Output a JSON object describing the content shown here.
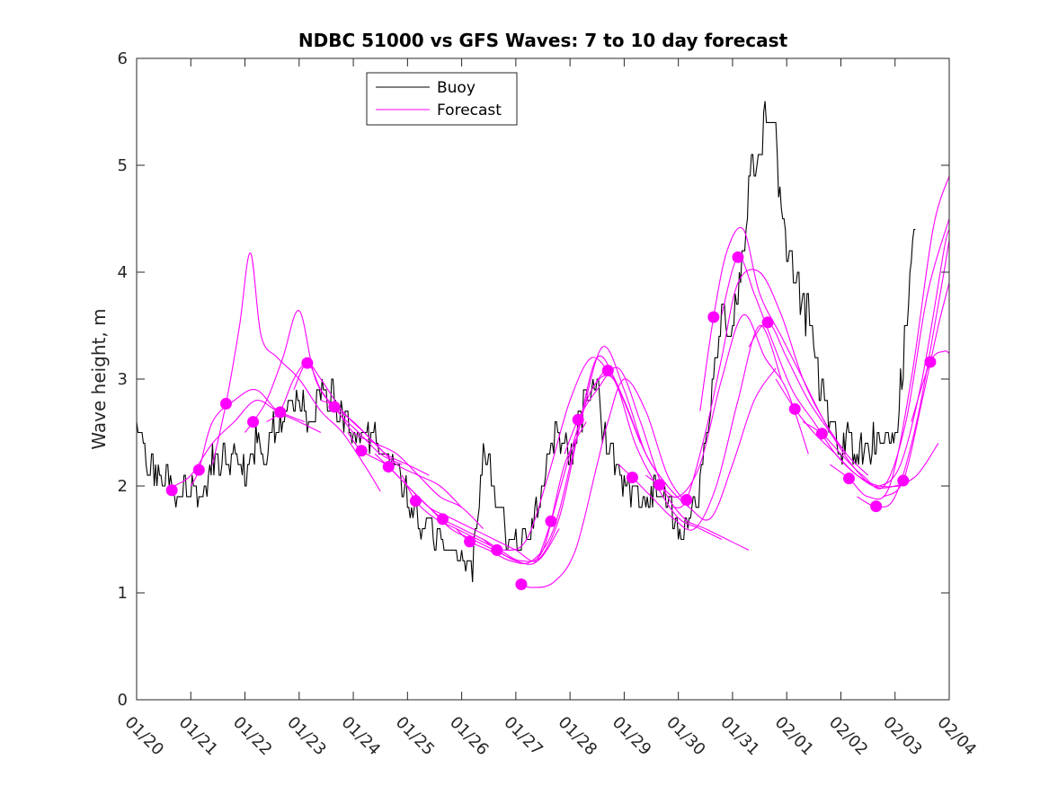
{
  "chart_data": {
    "type": "line",
    "title": "NDBC 51000 vs GFS Waves: 7 to 10 day forecast",
    "xlabel": "",
    "ylabel": "Wave height, m",
    "xlim": [
      0,
      15
    ],
    "ylim": [
      0,
      6
    ],
    "x_tick_labels": [
      "01/20",
      "01/21",
      "01/22",
      "01/23",
      "01/24",
      "01/25",
      "01/26",
      "01/27",
      "01/28",
      "01/29",
      "01/30",
      "01/31",
      "02/01",
      "02/02",
      "02/03",
      "02/04"
    ],
    "y_ticks": [
      0,
      1,
      2,
      3,
      4,
      5,
      6
    ],
    "grid": false,
    "legend": [
      "Buoy",
      "Forecast"
    ],
    "legend_position": "top-center",
    "colors": {
      "buoy": "#000000",
      "forecast": "#ff00ff",
      "axis": "#262626"
    },
    "buoy_series": {
      "name": "Buoy",
      "x": [
        0.0,
        0.2,
        0.4,
        0.6,
        0.8,
        1.0,
        1.2,
        1.4,
        1.6,
        1.8,
        2.0,
        2.2,
        2.4,
        2.6,
        2.8,
        3.0,
        3.2,
        3.4,
        3.6,
        3.8,
        4.0,
        4.2,
        4.4,
        4.6,
        4.8,
        5.0,
        5.2,
        5.4,
        5.6,
        5.8,
        6.0,
        6.2,
        6.4,
        6.6,
        6.8,
        7.0,
        7.2,
        7.4,
        7.6,
        7.8,
        8.0,
        8.2,
        8.4,
        8.6,
        8.8,
        9.0,
        9.2,
        9.4,
        9.6,
        9.8,
        10.0,
        10.2,
        10.4,
        10.6,
        10.8,
        11.0,
        11.2,
        11.4,
        11.6,
        11.8,
        12.0,
        12.2,
        12.4,
        12.6,
        12.8,
        13.0,
        13.2,
        13.4,
        13.6,
        13.8,
        14.0,
        14.2,
        14.4
      ],
      "y": [
        2.5,
        2.2,
        2.1,
        2.0,
        1.95,
        2.0,
        1.9,
        2.2,
        2.3,
        2.2,
        2.1,
        2.4,
        2.4,
        2.6,
        2.7,
        2.8,
        2.6,
        2.8,
        2.9,
        2.6,
        2.5,
        2.5,
        2.4,
        2.2,
        2.1,
        1.9,
        1.7,
        1.6,
        1.5,
        1.4,
        1.3,
        1.25,
        2.3,
        2.0,
        1.5,
        1.45,
        1.5,
        1.9,
        2.3,
        2.5,
        2.3,
        2.6,
        3.0,
        2.6,
        2.1,
        2.0,
        1.9,
        1.9,
        2.0,
        1.8,
        1.6,
        1.6,
        2.2,
        2.8,
        3.7,
        3.6,
        4.3,
        5.2,
        5.5,
        5.0,
        4.3,
        3.9,
        3.5,
        3.0,
        2.6,
        2.4,
        2.4,
        2.3,
        2.4,
        2.5,
        2.4,
        3.5,
        4.6
      ]
    },
    "forecast_series": [
      {
        "name": "Forecast",
        "x": [
          0.6,
          0.7,
          1.0,
          1.4,
          1.8,
          2.2,
          2.6,
          3.1
        ],
        "y": [
          1.95,
          2.0,
          2.1,
          2.4,
          2.6,
          2.8,
          2.7,
          2.6
        ]
      },
      {
        "name": "Forecast",
        "x": [
          1.0,
          1.15,
          1.4,
          1.8,
          2.2,
          2.6,
          3.0,
          3.4
        ],
        "y": [
          2.0,
          2.15,
          2.6,
          2.8,
          2.9,
          2.7,
          2.6,
          2.5
        ]
      },
      {
        "name": "Forecast",
        "x": [
          1.4,
          1.65,
          1.9,
          2.1,
          2.3,
          2.6,
          3.0,
          3.4,
          3.8,
          4.2,
          4.5
        ],
        "y": [
          2.2,
          2.77,
          3.5,
          4.18,
          3.4,
          3.2,
          3.0,
          2.7,
          2.5,
          2.2,
          1.95
        ]
      },
      {
        "name": "Forecast",
        "x": [
          2.0,
          2.15,
          2.4,
          2.7,
          3.0,
          3.3,
          3.7,
          4.1,
          4.5,
          4.9
        ],
        "y": [
          2.5,
          2.6,
          2.8,
          3.2,
          3.64,
          3.0,
          2.7,
          2.5,
          2.3,
          2.2
        ]
      },
      {
        "name": "Forecast",
        "x": [
          2.4,
          2.65,
          2.9,
          3.15,
          3.4,
          3.8,
          4.2,
          4.6,
          5.0,
          5.4
        ],
        "y": [
          2.6,
          2.7,
          3.0,
          3.15,
          3.0,
          2.7,
          2.5,
          2.3,
          2.2,
          2.1
        ]
      },
      {
        "name": "Forecast",
        "x": [
          2.9,
          3.15,
          3.4,
          3.65,
          4.0,
          4.4,
          4.8,
          5.2,
          5.6,
          6.0
        ],
        "y": [
          2.9,
          3.15,
          2.9,
          2.74,
          2.6,
          2.4,
          2.2,
          2.1,
          2.0,
          1.8
        ]
      },
      {
        "name": "Forecast",
        "x": [
          3.4,
          3.65,
          4.0,
          4.4,
          4.8,
          5.2,
          5.6,
          6.0,
          6.4
        ],
        "y": [
          2.8,
          2.74,
          2.5,
          2.4,
          2.3,
          2.1,
          1.9,
          1.8,
          1.6
        ]
      },
      {
        "name": "Forecast",
        "x": [
          3.9,
          4.15,
          4.6,
          5.0,
          5.4,
          5.8,
          6.2,
          6.6,
          7.0
        ],
        "y": [
          2.5,
          2.33,
          2.2,
          2.0,
          1.8,
          1.6,
          1.5,
          1.4,
          1.3
        ]
      },
      {
        "name": "Forecast",
        "x": [
          4.4,
          4.65,
          5.0,
          5.4,
          5.8,
          6.2,
          6.6,
          7.0,
          7.4,
          7.8
        ],
        "y": [
          2.3,
          2.18,
          2.0,
          1.8,
          1.7,
          1.6,
          1.5,
          1.4,
          1.3,
          1.6
        ]
      },
      {
        "name": "Forecast",
        "x": [
          4.9,
          5.15,
          5.5,
          5.9,
          6.3,
          6.7,
          7.1,
          7.5,
          7.9,
          8.3
        ],
        "y": [
          2.1,
          1.86,
          1.7,
          1.6,
          1.5,
          1.4,
          1.3,
          1.4,
          2.2,
          2.6
        ]
      },
      {
        "name": "Forecast",
        "x": [
          5.4,
          5.65,
          6.0,
          6.4,
          6.8,
          7.2,
          7.6,
          8.0,
          8.4,
          8.8
        ],
        "y": [
          1.8,
          1.69,
          1.6,
          1.5,
          1.4,
          1.5,
          2.1,
          2.8,
          3.2,
          3.0
        ]
      },
      {
        "name": "Forecast",
        "x": [
          5.9,
          6.15,
          6.5,
          6.9,
          7.3,
          7.7,
          8.1,
          8.5,
          8.9,
          9.3
        ],
        "y": [
          1.6,
          1.48,
          1.4,
          1.3,
          1.3,
          1.6,
          2.4,
          3.2,
          2.9,
          2.4
        ]
      },
      {
        "name": "Forecast",
        "x": [
          6.4,
          6.65,
          7.0,
          7.4,
          7.8,
          8.2,
          8.6,
          9.0,
          9.4,
          9.8
        ],
        "y": [
          1.5,
          1.4,
          1.3,
          1.3,
          1.7,
          2.6,
          3.3,
          2.9,
          2.3,
          2.0
        ]
      },
      {
        "name": "Forecast",
        "x": [
          7.1,
          7.3,
          7.7,
          8.1,
          8.5,
          8.7,
          9.0,
          9.4,
          9.8,
          10.2
        ],
        "y": [
          1.08,
          1.05,
          1.1,
          1.4,
          2.2,
          2.6,
          3.0,
          2.7,
          2.1,
          1.8
        ]
      },
      {
        "name": "Forecast",
        "x": [
          7.4,
          7.65,
          8.0,
          8.4,
          8.8,
          9.2,
          9.6,
          10.0,
          10.4,
          10.8
        ],
        "y": [
          1.3,
          1.67,
          2.3,
          2.9,
          3.0,
          2.4,
          2.0,
          1.7,
          1.6,
          1.5
        ]
      },
      {
        "name": "Forecast",
        "x": [
          7.9,
          8.15,
          8.5,
          8.9,
          9.3,
          9.7,
          10.1,
          10.5,
          10.9,
          11.3
        ],
        "y": [
          2.3,
          2.62,
          2.9,
          3.1,
          2.6,
          2.0,
          1.7,
          1.6,
          1.5,
          1.4
        ]
      },
      {
        "name": "Forecast",
        "x": [
          8.4,
          8.7,
          9.0,
          9.4,
          9.8,
          10.2,
          10.6,
          11.0,
          11.4,
          11.8
        ],
        "y": [
          2.9,
          3.08,
          2.8,
          2.3,
          2.0,
          1.8,
          1.7,
          2.2,
          2.8,
          3.1
        ]
      },
      {
        "name": "Forecast",
        "x": [
          8.9,
          9.15,
          9.5,
          9.9,
          10.3,
          10.7,
          11.1,
          11.5,
          11.9
        ],
        "y": [
          2.2,
          2.08,
          1.9,
          1.7,
          1.6,
          2.0,
          2.8,
          3.5,
          3.0
        ]
      },
      {
        "name": "Forecast",
        "x": [
          9.4,
          9.65,
          10.0,
          10.4,
          10.8,
          11.2,
          11.6,
          12.0,
          12.4
        ],
        "y": [
          2.1,
          2.01,
          1.9,
          2.2,
          3.0,
          3.6,
          3.2,
          2.9,
          2.3
        ]
      },
      {
        "name": "Forecast",
        "x": [
          9.9,
          10.15,
          10.5,
          10.8,
          11.1,
          11.5,
          11.9,
          12.3,
          12.7,
          13.1
        ],
        "y": [
          1.8,
          1.87,
          2.5,
          3.2,
          3.9,
          4.0,
          3.6,
          3.0,
          2.6,
          2.3
        ]
      },
      {
        "name": "Forecast",
        "x": [
          10.4,
          10.65,
          10.9,
          11.2,
          11.5,
          11.9,
          12.3,
          12.7,
          13.1,
          13.5
        ],
        "y": [
          2.7,
          3.58,
          4.2,
          4.4,
          3.8,
          3.4,
          3.0,
          2.6,
          2.3,
          2.1
        ]
      },
      {
        "name": "Forecast",
        "x": [
          10.8,
          11.1,
          11.4,
          11.7,
          12.1,
          12.5,
          12.9,
          13.3,
          13.7,
          14.1
        ],
        "y": [
          3.6,
          4.14,
          3.8,
          3.4,
          2.9,
          2.6,
          2.3,
          2.1,
          2.0,
          2.0
        ]
      },
      {
        "name": "Forecast",
        "x": [
          11.3,
          11.65,
          12.0,
          12.4,
          12.8,
          13.2,
          13.6,
          14.0,
          14.4,
          14.8
        ],
        "y": [
          3.3,
          3.53,
          3.2,
          2.8,
          2.5,
          2.2,
          2.0,
          2.0,
          2.1,
          2.4
        ]
      },
      {
        "name": "Forecast",
        "x": [
          11.8,
          12.15,
          12.5,
          12.9,
          13.3,
          13.7,
          14.1,
          14.5,
          14.9,
          15.0
        ],
        "y": [
          3.0,
          2.72,
          2.5,
          2.3,
          2.1,
          2.0,
          2.2,
          3.0,
          4.2,
          4.4
        ]
      },
      {
        "name": "Forecast",
        "x": [
          12.3,
          12.65,
          13.0,
          13.4,
          13.8,
          14.2,
          14.6,
          15.0
        ],
        "y": [
          2.6,
          2.49,
          2.3,
          2.1,
          2.0,
          2.6,
          3.8,
          4.5
        ]
      },
      {
        "name": "Forecast",
        "x": [
          12.8,
          13.15,
          13.5,
          13.9,
          14.3,
          14.7,
          15.0
        ],
        "y": [
          2.2,
          2.07,
          1.9,
          2.0,
          3.0,
          4.4,
          4.9
        ]
      },
      {
        "name": "Forecast",
        "x": [
          13.3,
          13.65,
          14.0,
          14.4,
          14.8,
          15.0
        ],
        "y": [
          1.9,
          1.81,
          1.9,
          2.6,
          3.7,
          4.3
        ]
      },
      {
        "name": "Forecast",
        "x": [
          13.8,
          14.15,
          14.5,
          14.8,
          15.0
        ],
        "y": [
          1.9,
          2.05,
          2.8,
          3.5,
          3.9
        ]
      },
      {
        "name": "Forecast",
        "x": [
          14.3,
          14.65,
          14.9,
          15.0
        ],
        "y": [
          2.6,
          3.16,
          3.26,
          3.24
        ]
      }
    ],
    "forecast_markers": {
      "x": [
        0.65,
        1.15,
        1.65,
        2.15,
        2.65,
        3.15,
        3.65,
        4.15,
        4.65,
        5.15,
        5.65,
        6.15,
        6.65,
        7.1,
        7.65,
        8.15,
        8.7,
        9.15,
        9.65,
        10.15,
        10.65,
        11.1,
        11.65,
        12.15,
        12.65,
        13.15,
        13.65,
        14.15,
        14.65
      ],
      "y": [
        1.96,
        2.15,
        2.77,
        2.6,
        2.69,
        3.15,
        2.74,
        2.33,
        2.18,
        1.86,
        1.69,
        1.48,
        1.4,
        1.08,
        1.67,
        2.62,
        3.08,
        2.08,
        2.01,
        1.87,
        3.58,
        4.14,
        3.53,
        2.72,
        2.49,
        2.07,
        1.81,
        2.05,
        3.16
      ]
    }
  }
}
